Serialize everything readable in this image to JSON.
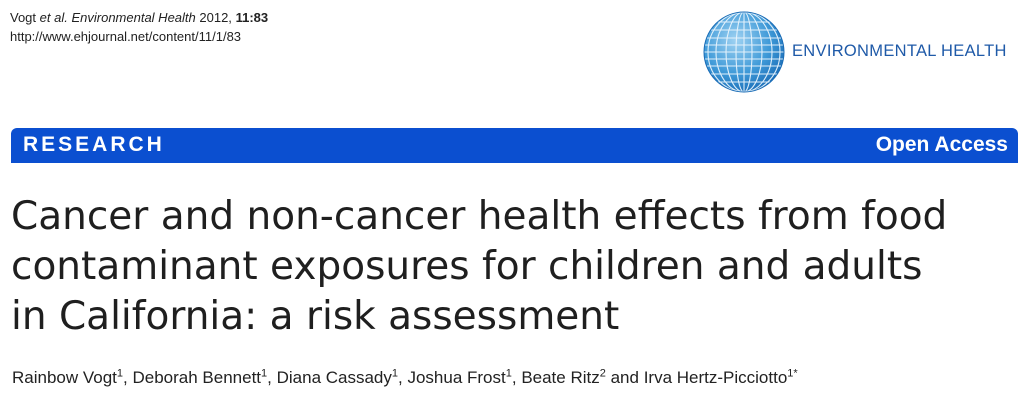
{
  "citation": {
    "authors_short": "Vogt",
    "et_al": "et al.",
    "journal": "Environmental Health",
    "year": "2012,",
    "volume": "11",
    "article": ":83",
    "url": "http://www.ehjournal.net/content/11/1/83"
  },
  "logo": {
    "icon": "globe-icon",
    "text": "ENVIRONMENTAL HEALTH",
    "color": "#1f5aa8"
  },
  "banner": {
    "section": "RESEARCH",
    "access": "Open Access",
    "color": "#0b4fd0"
  },
  "title": {
    "line1": "Cancer and non-cancer health effects from food",
    "line2": "contaminant exposures for children and adults",
    "line3": "in California: a risk assessment"
  },
  "authors": [
    {
      "name": "Rainbow Vogt",
      "affil": "1",
      "sep": ", "
    },
    {
      "name": "Deborah Bennett",
      "affil": "1",
      "sep": ", "
    },
    {
      "name": "Diana Cassady",
      "affil": "1",
      "sep": ", "
    },
    {
      "name": "Joshua Frost",
      "affil": "1",
      "sep": ", "
    },
    {
      "name": "Beate Ritz",
      "affil": "2",
      "sep": " and "
    },
    {
      "name": "Irva Hertz-Picciotto",
      "affil": "1*",
      "sep": ""
    }
  ]
}
